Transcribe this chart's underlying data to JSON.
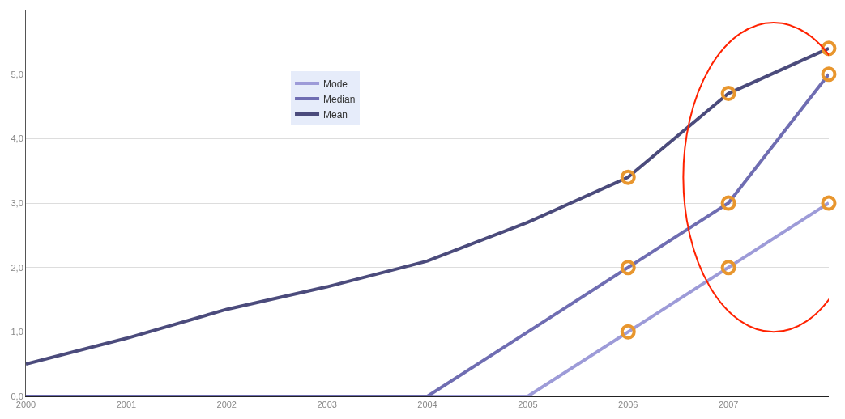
{
  "chart_data": {
    "type": "line",
    "x": [
      2000,
      2001,
      2002,
      2003,
      2004,
      2005,
      2006,
      2007,
      2008
    ],
    "series": [
      {
        "name": "Mode",
        "color": "#9d9bd8",
        "values": [
          0,
          0,
          0,
          0,
          0,
          0,
          1,
          2,
          3
        ]
      },
      {
        "name": "Median",
        "color": "#6f6db2",
        "values": [
          0,
          0,
          0,
          0,
          0,
          1,
          2,
          3,
          5
        ]
      },
      {
        "name": "Mean",
        "color": "#4b4b7c",
        "values": [
          0.5,
          0.9,
          1.35,
          1.7,
          2.1,
          2.7,
          3.4,
          4.7,
          5.4
        ]
      },
      {
        "type": "scatter",
        "color": "#e8962e",
        "marker": "circle",
        "x": [
          2006,
          2006,
          2006,
          2007,
          2007,
          2007,
          2008,
          2008,
          2008
        ],
        "values": [
          1,
          2,
          3.4,
          2,
          3,
          4.7,
          3,
          5,
          5.4
        ]
      }
    ],
    "xlim": [
      2000,
      2008
    ],
    "xticks": [
      2000,
      2001,
      2002,
      2003,
      2004,
      2005,
      2006,
      2007
    ],
    "ylim": [
      0,
      6
    ],
    "yticks": [
      {
        "value": 0,
        "label": "0,0"
      },
      {
        "value": 1,
        "label": "1,0"
      },
      {
        "value": 2,
        "label": "2,0"
      },
      {
        "value": 3,
        "label": "3,0"
      },
      {
        "value": 4,
        "label": "4,0"
      },
      {
        "value": 5,
        "label": "5,0"
      }
    ],
    "grid": "y",
    "legend": "top",
    "marker": "none"
  }
}
